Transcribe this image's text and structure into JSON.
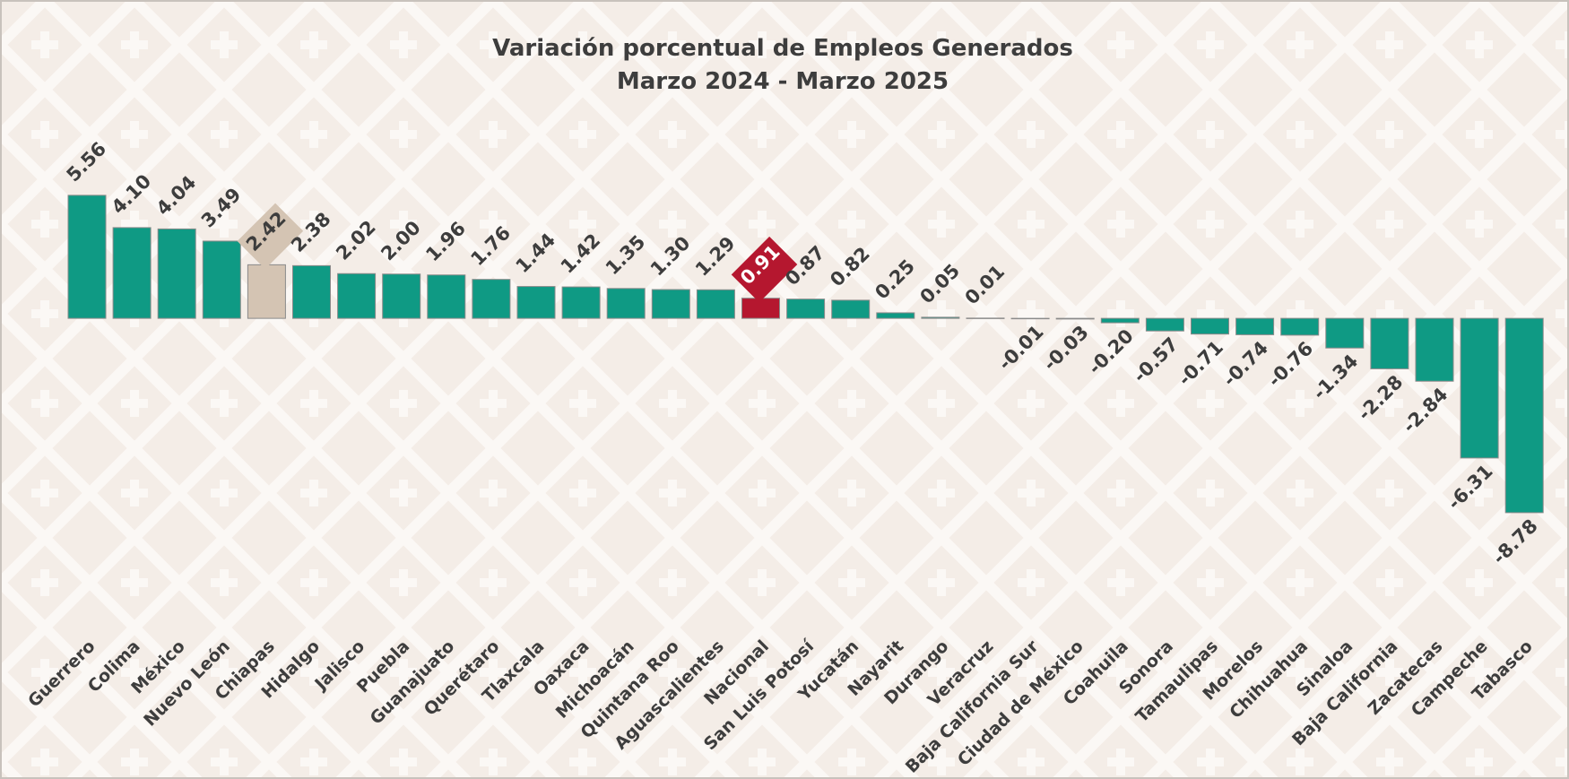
{
  "chart_data": {
    "type": "bar",
    "title": "Variación porcentual de Empleos Generados",
    "subtitle": "Marzo 2024 - Marzo 2025",
    "categories": [
      "Guerrero",
      "Colima",
      "México",
      "Nuevo León",
      "Chiapas",
      "Hidalgo",
      "Jalisco",
      "Puebla",
      "Guanajuato",
      "Querétaro",
      "Tlaxcala",
      "Oaxaca",
      "Michoacán",
      "Quintana Roo",
      "Aguascalientes",
      "Nacional",
      "San Luis Potosí",
      "Yucatán",
      "Nayarit",
      "Durango",
      "Veracruz",
      "Baja California Sur",
      "Ciudad de México",
      "Coahuila",
      "Sonora",
      "Tamaulipas",
      "Morelos",
      "Chihuahua",
      "Sinaloa",
      "Baja California",
      "Zacatecas",
      "Campeche",
      "Tabasco"
    ],
    "values": [
      5.56,
      4.1,
      4.04,
      3.49,
      2.42,
      2.38,
      2.02,
      2.0,
      1.96,
      1.76,
      1.44,
      1.42,
      1.35,
      1.3,
      1.29,
      0.91,
      0.87,
      0.82,
      0.25,
      0.05,
      0.01,
      -0.01,
      -0.03,
      -0.2,
      -0.57,
      -0.71,
      -0.74,
      -0.76,
      -1.34,
      -2.28,
      -2.84,
      -6.31,
      -8.78
    ],
    "value_labels": [
      "5.56",
      "4.10",
      "4.04",
      "3.49",
      "2.42",
      "2.38",
      "2.02",
      "2.00",
      "1.96",
      "1.76",
      "1.44",
      "1.42",
      "1.35",
      "1.30",
      "1.29",
      "0.91",
      "0.87",
      "0.82",
      "0.25",
      "0.05",
      "0.01",
      "-0.01",
      "-0.03",
      "-0.20",
      "-0.57",
      "-0.71",
      "-0.74",
      "-0.76",
      "-1.34",
      "-2.28",
      "-2.84",
      "-6.31",
      "-8.78"
    ],
    "color": "#0f9a84",
    "colors": [
      "#0f9a84",
      "#0f9a84",
      "#0f9a84",
      "#0f9a84",
      "#d4c4b3",
      "#0f9a84",
      "#0f9a84",
      "#0f9a84",
      "#0f9a84",
      "#0f9a84",
      "#0f9a84",
      "#0f9a84",
      "#0f9a84",
      "#0f9a84",
      "#0f9a84",
      "#b5172f",
      "#0f9a84",
      "#0f9a84",
      "#0f9a84",
      "#0f9a84",
      "#0f9a84",
      "#0f9a84",
      "#0f9a84",
      "#0f9a84",
      "#0f9a84",
      "#0f9a84",
      "#0f9a84",
      "#0f9a84",
      "#0f9a84",
      "#0f9a84",
      "#0f9a84",
      "#0f9a84",
      "#0f9a84"
    ],
    "ylim": [
      -10,
      6
    ]
  }
}
